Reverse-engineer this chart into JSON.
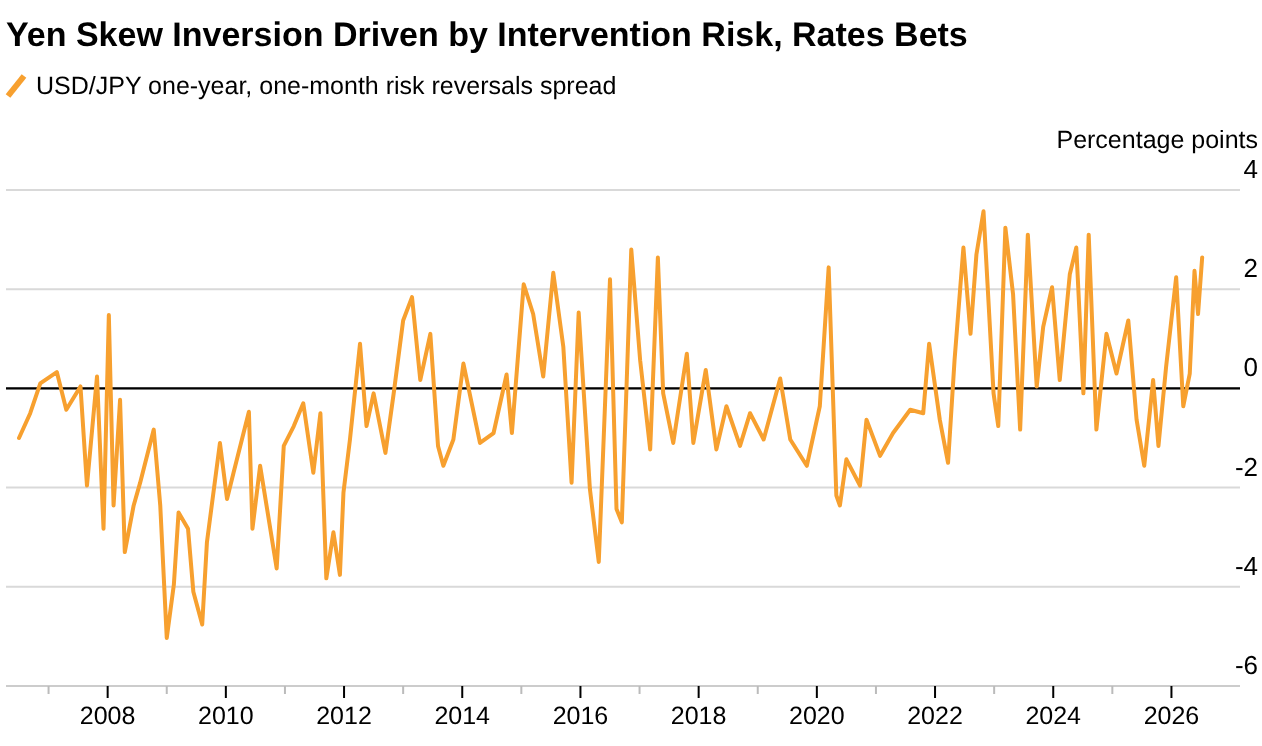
{
  "chart_data": {
    "type": "line",
    "title": "Yen Skew Inversion Driven by Intervention Risk, Rates Bets",
    "ylabel": "Percentage points",
    "x": [
      2006.5,
      2006.69,
      2006.86,
      2007.14,
      2007.3,
      2007.54,
      2007.65,
      2007.82,
      2007.93,
      2008.02,
      2008.1,
      2008.21,
      2008.29,
      2008.44,
      2008.55,
      2008.78,
      2008.89,
      2009.0,
      2009.12,
      2009.2,
      2009.36,
      2009.45,
      2009.6,
      2009.68,
      2009.9,
      2010.02,
      2010.13,
      2010.39,
      2010.45,
      2010.58,
      2010.86,
      2010.98,
      2011.15,
      2011.31,
      2011.48,
      2011.6,
      2011.7,
      2011.82,
      2011.93,
      2011.99,
      2012.1,
      2012.27,
      2012.38,
      2012.5,
      2012.7,
      2012.84,
      2013.0,
      2013.15,
      2013.29,
      2013.46,
      2013.59,
      2013.68,
      2013.85,
      2014.02,
      2014.3,
      2014.53,
      2014.75,
      2014.84,
      2015.04,
      2015.2,
      2015.37,
      2015.54,
      2015.71,
      2015.85,
      2015.97,
      2016.16,
      2016.31,
      2016.5,
      2016.61,
      2016.7,
      2016.86,
      2017.01,
      2017.18,
      2017.31,
      2017.4,
      2017.57,
      2017.8,
      2017.91,
      2018.12,
      2018.3,
      2018.47,
      2018.7,
      2018.87,
      2019.1,
      2019.38,
      2019.55,
      2019.83,
      2020.05,
      2020.2,
      2020.33,
      2020.39,
      2020.5,
      2020.73,
      2020.84,
      2021.07,
      2021.29,
      2021.58,
      2021.8,
      2021.9,
      2022.08,
      2022.22,
      2022.33,
      2022.48,
      2022.6,
      2022.7,
      2022.82,
      2022.99,
      2023.07,
      2023.19,
      2023.32,
      2023.44,
      2023.57,
      2023.72,
      2023.83,
      2023.98,
      2024.11,
      2024.28,
      2024.39,
      2024.51,
      2024.6,
      2024.73,
      2024.9,
      2025.07,
      2025.27,
      2025.41,
      2025.54,
      2025.69,
      2025.78,
      2025.91,
      2026.08,
      2026.2,
      2026.31,
      2026.39,
      2026.45,
      2026.52
    ],
    "series": [
      {
        "name": "USD/JPY one-year, one-month risk reversals spread",
        "color": "#f7a02f",
        "values": [
          -1.0,
          -0.5,
          0.1,
          0.33,
          -0.43,
          0.04,
          -1.96,
          0.24,
          -2.83,
          1.48,
          -2.36,
          -0.23,
          -3.3,
          -2.36,
          -1.9,
          -0.83,
          -2.36,
          -5.03,
          -3.96,
          -2.5,
          -2.83,
          -4.1,
          -4.76,
          -3.1,
          -1.1,
          -2.23,
          -1.7,
          -0.47,
          -2.83,
          -1.56,
          -3.63,
          -1.16,
          -0.76,
          -0.3,
          -1.7,
          -0.5,
          -3.83,
          -2.9,
          -3.76,
          -2.1,
          -1.03,
          0.9,
          -0.76,
          -0.1,
          -1.3,
          -0.1,
          1.37,
          1.84,
          0.17,
          1.1,
          -1.16,
          -1.56,
          -1.03,
          0.5,
          -1.1,
          -0.9,
          0.28,
          -0.9,
          2.1,
          1.5,
          0.24,
          2.33,
          0.84,
          -1.9,
          1.53,
          -2.03,
          -3.5,
          2.2,
          -2.43,
          -2.7,
          2.8,
          0.57,
          -1.23,
          2.64,
          -0.1,
          -1.1,
          0.7,
          -1.1,
          0.37,
          -1.23,
          -0.36,
          -1.16,
          -0.5,
          -1.03,
          0.2,
          -1.03,
          -1.56,
          -0.36,
          2.44,
          -2.16,
          -2.36,
          -1.43,
          -1.96,
          -0.63,
          -1.36,
          -0.9,
          -0.43,
          -0.5,
          0.9,
          -0.63,
          -1.5,
          0.57,
          2.84,
          1.1,
          2.7,
          3.57,
          -0.1,
          -0.76,
          3.24,
          1.9,
          -0.83,
          3.1,
          0.04,
          1.24,
          2.04,
          0.17,
          2.3,
          2.84,
          -0.1,
          3.1,
          -0.83,
          1.1,
          0.3,
          1.37,
          -0.63,
          -1.56,
          0.17,
          -1.16,
          0.44,
          2.24,
          -0.36,
          0.3,
          2.37,
          1.5,
          2.64
        ]
      }
    ],
    "xlim": [
      2006.28,
      2027.16
    ],
    "xticks": [
      {
        "value": 2007,
        "label": null
      },
      2008,
      {
        "value": 2009,
        "label": null
      },
      2010,
      {
        "value": 2011,
        "label": null
      },
      2012,
      {
        "value": 2013,
        "label": null
      },
      2014,
      {
        "value": 2015,
        "label": null
      },
      2016,
      {
        "value": 2017,
        "label": null
      },
      2018,
      {
        "value": 2019,
        "label": null
      },
      2020,
      {
        "value": 2021,
        "label": null
      },
      2022,
      {
        "value": 2023,
        "label": null
      },
      2024,
      {
        "value": 2025,
        "label": null
      },
      2026
    ],
    "ylim": [
      -6,
      4
    ],
    "yticks": [
      -6,
      -4,
      -2,
      0,
      2,
      4
    ],
    "ref_lines": [
      {
        "axis": "y",
        "value": 0,
        "color": "#000000"
      }
    ],
    "grid": "y",
    "legend": "top left",
    "marker": "none",
    "line_style": "solid"
  }
}
